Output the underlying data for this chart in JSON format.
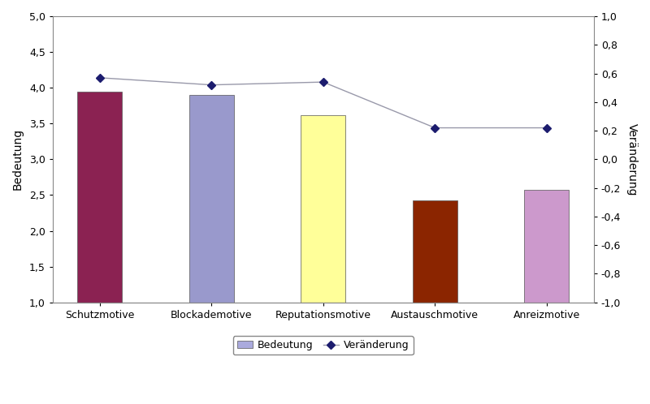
{
  "categories": [
    "Schutzmotive",
    "Blockademotive",
    "Reputationsmotive",
    "Austauschmotive",
    "Anreizmotive"
  ],
  "bedeutung_values": [
    3.95,
    3.9,
    3.62,
    2.43,
    2.57
  ],
  "veraenderung_values": [
    0.57,
    0.52,
    0.54,
    0.22,
    0.22
  ],
  "bar_colors": [
    "#8B2252",
    "#9999CC",
    "#FFFF99",
    "#8B2500",
    "#CC99CC"
  ],
  "bedeutung_ylim": [
    1.0,
    5.0
  ],
  "veraenderung_ylim": [
    -1.0,
    1.0
  ],
  "bedeutung_yticks": [
    1.0,
    1.5,
    2.0,
    2.5,
    3.0,
    3.5,
    4.0,
    4.5,
    5.0
  ],
  "veraenderung_yticks": [
    -1.0,
    -0.8,
    -0.6,
    -0.4,
    -0.2,
    0.0,
    0.2,
    0.4,
    0.6,
    0.8,
    1.0
  ],
  "ylabel_left": "Bedeutung",
  "ylabel_right": "Veränderung",
  "line_color": "#9999AA",
  "marker_color": "#1C1C6E",
  "line_marker": "D",
  "line_marker_size": 5,
  "legend_bedeutung_color": "#AAAADD",
  "background_color": "#FFFFFF",
  "figure_size": [
    8.0,
    4.98
  ],
  "dpi": 100,
  "bar_width": 0.4
}
